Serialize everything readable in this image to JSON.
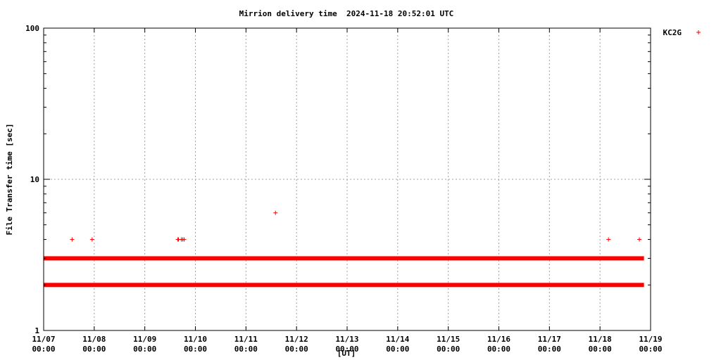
{
  "chart_data": {
    "type": "scatter",
    "title": "Mirrion delivery time  2024-11-18 20:52:01 UTC",
    "xlabel": "[UT]",
    "ylabel": "File Transfer time [sec]",
    "y_scale": "log",
    "ylim": [
      1,
      100
    ],
    "y_ticks": [
      1,
      10,
      100
    ],
    "y_tick_labels": [
      "1",
      "10",
      "100"
    ],
    "xlim": [
      "2024-11-07 00:00",
      "2024-11-19 00:00"
    ],
    "x_ticks": [
      "2024-11-07 00:00",
      "2024-11-08 00:00",
      "2024-11-09 00:00",
      "2024-11-10 00:00",
      "2024-11-11 00:00",
      "2024-11-12 00:00",
      "2024-11-13 00:00",
      "2024-11-14 00:00",
      "2024-11-15 00:00",
      "2024-11-16 00:00",
      "2024-11-17 00:00",
      "2024-11-18 00:00",
      "2024-11-19 00:00"
    ],
    "x_tick_labels": [
      [
        "11/07",
        "00:00"
      ],
      [
        "11/08",
        "00:00"
      ],
      [
        "11/09",
        "00:00"
      ],
      [
        "11/10",
        "00:00"
      ],
      [
        "11/11",
        "00:00"
      ],
      [
        "11/12",
        "00:00"
      ],
      [
        "11/13",
        "00:00"
      ],
      [
        "11/14",
        "00:00"
      ],
      [
        "11/15",
        "00:00"
      ],
      [
        "11/16",
        "00:00"
      ],
      [
        "11/17",
        "00:00"
      ],
      [
        "11/18",
        "00:00"
      ],
      [
        "11/19",
        "00:00"
      ]
    ],
    "grid": true,
    "legend_position": "top-right",
    "series": [
      {
        "name": "KC2G",
        "color": "#ff0000",
        "marker": "plus",
        "bands": [
          {
            "y": 2,
            "x_start": "2024-11-07 00:00",
            "x_end": "2024-11-18 20:52"
          },
          {
            "y": 3,
            "x_start": "2024-11-07 00:00",
            "x_end": "2024-11-18 20:52"
          }
        ],
        "points": [
          {
            "x": "2024-11-07 13:30",
            "y": 4
          },
          {
            "x": "2024-11-07 23:00",
            "y": 4
          },
          {
            "x": "2024-11-09 15:40",
            "y": 4
          },
          {
            "x": "2024-11-09 16:00",
            "y": 4
          },
          {
            "x": "2024-11-09 17:20",
            "y": 4
          },
          {
            "x": "2024-11-09 18:00",
            "y": 4
          },
          {
            "x": "2024-11-09 18:40",
            "y": 4
          },
          {
            "x": "2024-11-11 14:00",
            "y": 6
          },
          {
            "x": "2024-11-18 04:00",
            "y": 4
          },
          {
            "x": "2024-11-18 18:40",
            "y": 4
          }
        ]
      }
    ]
  }
}
